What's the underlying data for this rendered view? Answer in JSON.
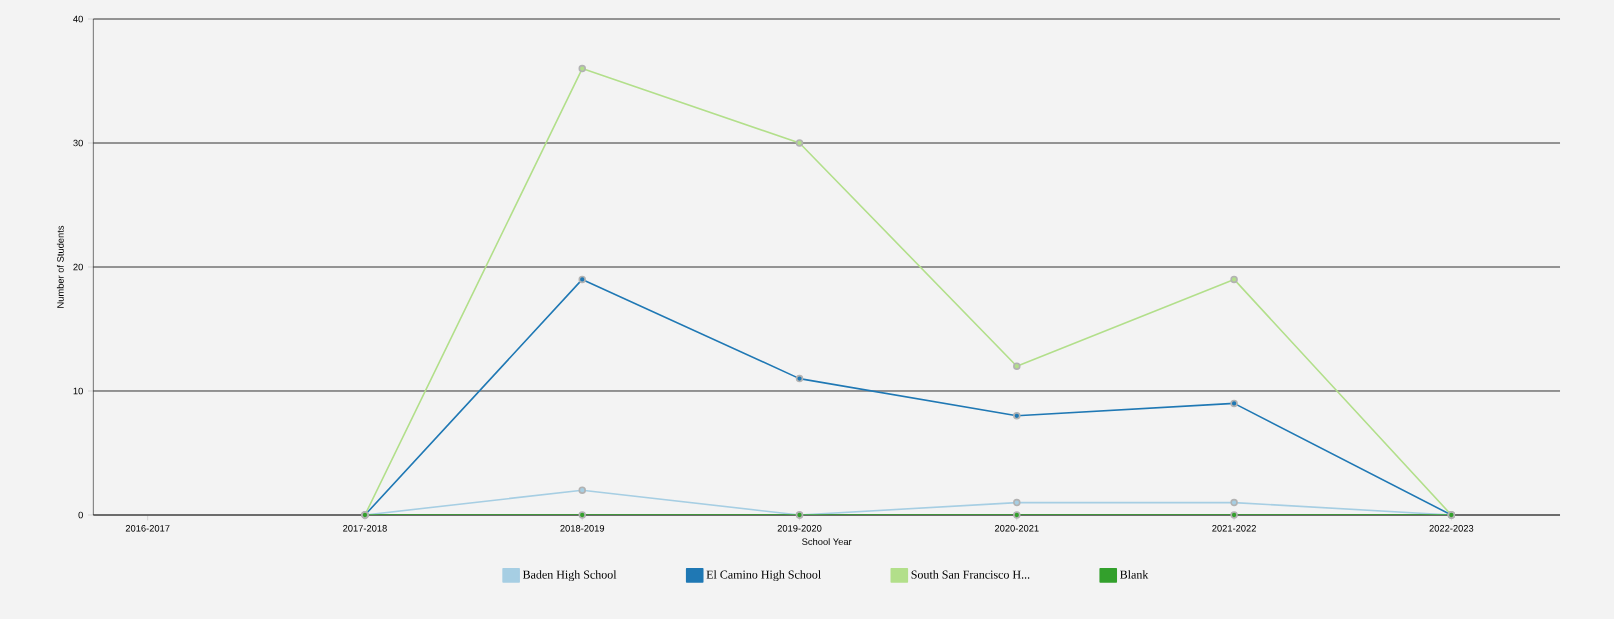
{
  "chart_data": {
    "type": "line",
    "xlabel": "School Year",
    "ylabel": "Number of Students",
    "categories": [
      "2016-2017",
      "2017-2018",
      "2018-2019",
      "2019-2020",
      "2020-2021",
      "2021-2022",
      "2022-2023"
    ],
    "series": [
      {
        "name": "Baden High School",
        "color": "#a6cee3",
        "values": [
          null,
          0,
          2,
          0,
          1,
          1,
          0
        ]
      },
      {
        "name": "El Camino High School",
        "color": "#1f78b4",
        "values": [
          null,
          0,
          19,
          11,
          8,
          9,
          0
        ]
      },
      {
        "name": "South San Francisco H...",
        "color": "#b2df8a",
        "values": [
          null,
          0,
          36,
          30,
          12,
          19,
          0
        ]
      },
      {
        "name": "Blank",
        "color": "#33a02c",
        "values": [
          null,
          0,
          0,
          0,
          0,
          0,
          0
        ]
      }
    ],
    "ylim": [
      0,
      40
    ],
    "yticks": [
      0,
      10,
      20,
      30,
      40
    ],
    "grid": "y",
    "legend": "bottom",
    "marker": "circle",
    "line_style": "solid"
  }
}
